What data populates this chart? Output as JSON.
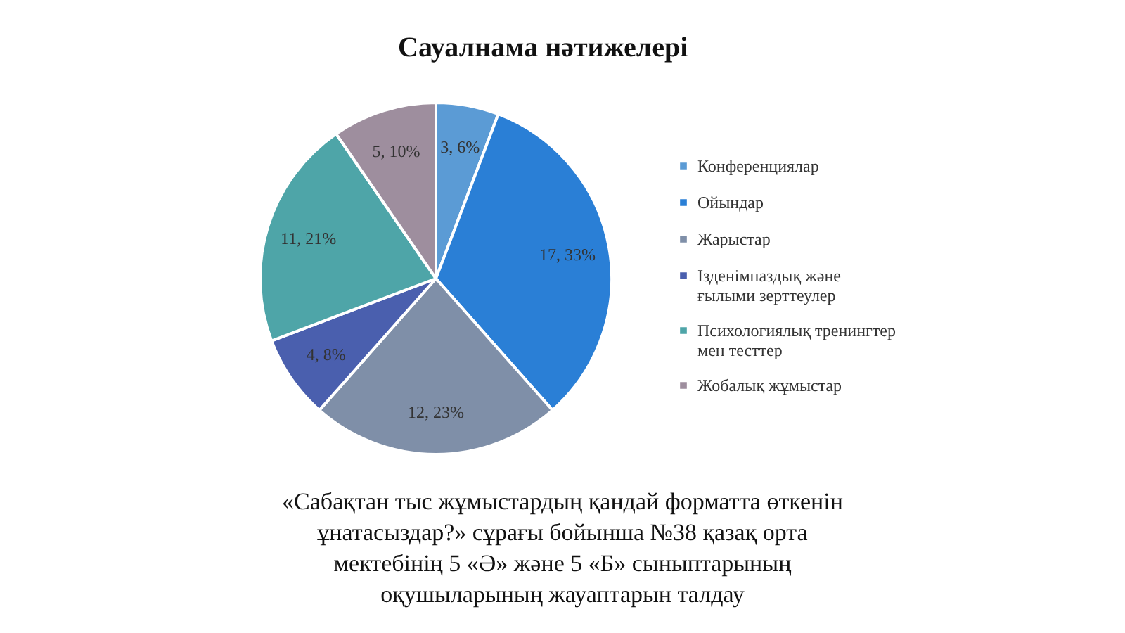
{
  "chart_data": {
    "type": "pie",
    "title": "Сауалнама нәтижелері",
    "categories": [
      "Конференциялар",
      "Ойындар",
      "Жарыстар",
      "Ізденімпаздық және ғылыми зерттеулер",
      "Психологиялық тренингтер мен тесттер",
      "Жобалық жұмыстар"
    ],
    "values": [
      3,
      17,
      12,
      4,
      11,
      5
    ],
    "value_labels": [
      "3, 6%",
      "17, 33%",
      "12, 23%",
      "4, 8%",
      "11, 21%",
      "5, 10%"
    ],
    "colors": [
      "#5b9bd5",
      "#2a7fd6",
      "#7f8fa8",
      "#4a5fae",
      "#4ea5a8",
      "#9e8e9e"
    ],
    "legend": "right",
    "annotations": [
      "«Сабақтан тыс жұмыстардың қандай форматта өткенін ұнатасыздар?» сұрағы бойынша №38 қазақ орта мектебінің 5 «Ә» және 5 «Б» сыныптарының оқушыларының жауаптарын талдау"
    ]
  }
}
